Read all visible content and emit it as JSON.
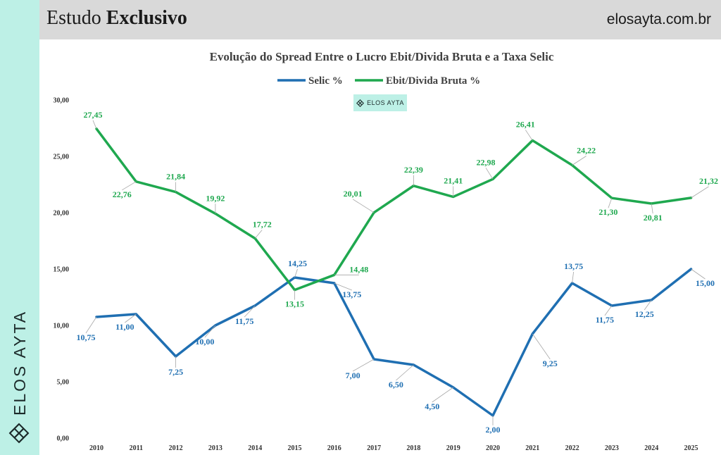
{
  "header": {
    "title_regular": "Estudo",
    "title_bold": "Exclusivo",
    "site": "elosayta.com.br"
  },
  "brand": {
    "name": "ELOS AYTA",
    "watermark": "ELOS AYTA"
  },
  "colors": {
    "selic": "#1f6fb2",
    "ebit": "#1fa84f",
    "sidebar": "#bdf0e6",
    "header": "#d9d9d9"
  },
  "chart_data": {
    "type": "line",
    "title": "Evolução do Spread Entre o Lucro Ebit/Divida Bruta e a Taxa Selic",
    "categories": [
      "2010",
      "2011",
      "2012",
      "2013",
      "2014",
      "2015",
      "2016",
      "2017",
      "2018",
      "2019",
      "2020",
      "2021",
      "2022",
      "2023",
      "2024",
      "2025"
    ],
    "ylim": [
      0,
      30
    ],
    "yticks": [
      "0,00",
      "5,00",
      "10,00",
      "15,00",
      "20,00",
      "25,00",
      "30,00"
    ],
    "series": [
      {
        "name": "Selic %",
        "values": [
          10.75,
          11.0,
          7.25,
          10.0,
          11.75,
          14.25,
          13.75,
          7.0,
          6.5,
          4.5,
          2.0,
          9.25,
          13.75,
          11.75,
          12.25,
          15.0
        ],
        "labels": [
          "10,75",
          "11,00",
          "7,25",
          "10,00",
          "11,75",
          "14,25",
          "13,75",
          "7,00",
          "6,50",
          "4,50",
          "2,00",
          "9,25",
          "13,75",
          "11,75",
          "12,25",
          "15,00"
        ]
      },
      {
        "name": "Ebit/Divida Bruta %",
        "values": [
          27.45,
          22.76,
          21.84,
          19.92,
          17.72,
          13.15,
          14.48,
          20.01,
          22.39,
          21.41,
          22.98,
          26.41,
          24.22,
          21.3,
          20.81,
          21.32
        ],
        "labels": [
          "27,45",
          "22,76",
          "21,84",
          "19,92",
          "17,72",
          "13,15",
          "14,48",
          "20,01",
          "22,39",
          "21,41",
          "22,98",
          "26,41",
          "24,22",
          "21,30",
          "20,81",
          "21,32"
        ]
      }
    ]
  }
}
